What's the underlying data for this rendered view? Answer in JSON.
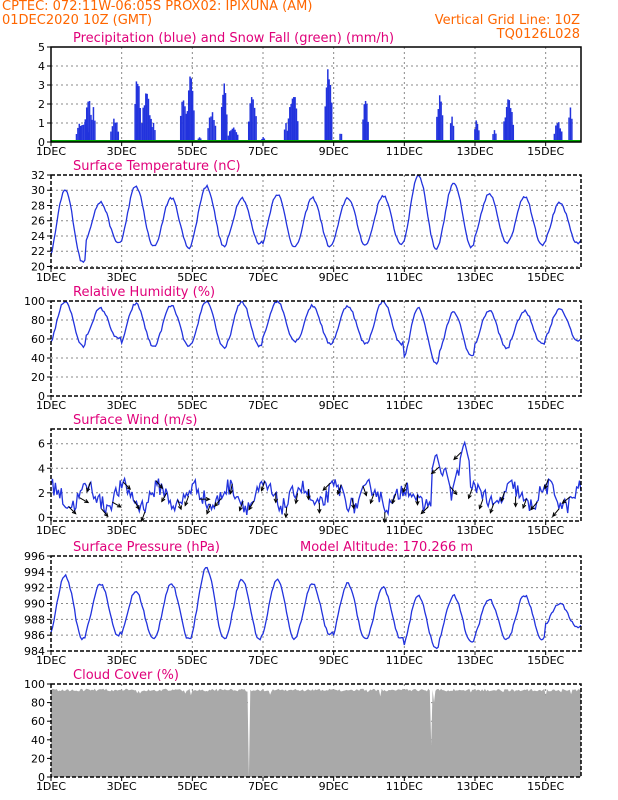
{
  "header": {
    "line1_left": "CPTEC:   072:11W-06:05S   PROX02: IPIXUNA (AM)",
    "line2_left": "01DEC2020 10Z (GMT)",
    "line2_right": "Vertical Grid Line: 10Z",
    "line3_right": "TQ0126L028",
    "color": "#ff6600"
  },
  "colors": {
    "series": "#2233dd",
    "snow": "#00aa00",
    "cloud": "#a9a9a9",
    "title": "#e0007a",
    "grid": "#888888"
  },
  "chart_data": [
    {
      "type": "bar",
      "title": "Precipitation (blue) and Snow Fall (green) (mm/h)",
      "xlabels": [
        "1DEC",
        "3DEC",
        "5DEC",
        "7DEC",
        "9DEC",
        "11DEC",
        "13DEC",
        "15DEC"
      ],
      "xticks": [
        1,
        3,
        5,
        7,
        9,
        11,
        13,
        15
      ],
      "xrange": [
        1,
        16
      ],
      "ylim": [
        0,
        5
      ],
      "yticks": [
        0,
        1,
        2,
        3,
        4,
        5
      ],
      "snow_value": 0,
      "events": [
        [
          1.9,
          0.4,
          1.2
        ],
        [
          2.05,
          0.2,
          2.6
        ],
        [
          2.2,
          0.12,
          2.2
        ],
        [
          2.8,
          0.25,
          1.3
        ],
        [
          3.45,
          0.18,
          3.7
        ],
        [
          3.7,
          0.3,
          2.6
        ],
        [
          3.9,
          0.12,
          1.2
        ],
        [
          4.75,
          0.2,
          2.7
        ],
        [
          4.95,
          0.22,
          3.8
        ],
        [
          5.2,
          0.1,
          0.3
        ],
        [
          5.55,
          0.25,
          1.8
        ],
        [
          5.9,
          0.18,
          3.4
        ],
        [
          6.15,
          0.3,
          0.9
        ],
        [
          6.7,
          0.25,
          2.7
        ],
        [
          7.0,
          0.1,
          0.3
        ],
        [
          7.65,
          0.12,
          1.0
        ],
        [
          7.85,
          0.3,
          2.8
        ],
        [
          8.85,
          0.22,
          4.3
        ],
        [
          9.2,
          0.08,
          0.7
        ],
        [
          9.9,
          0.18,
          2.5
        ],
        [
          12.0,
          0.2,
          2.6
        ],
        [
          12.35,
          0.12,
          1.6
        ],
        [
          13.05,
          0.15,
          1.2
        ],
        [
          13.55,
          0.12,
          0.8
        ],
        [
          13.95,
          0.3,
          2.4
        ],
        [
          15.35,
          0.25,
          1.1
        ],
        [
          15.7,
          0.12,
          2.2
        ]
      ]
    },
    {
      "type": "line",
      "title": "Surface Temperature (nC)",
      "xlabels": [
        "1DEC",
        "3DEC",
        "5DEC",
        "7DEC",
        "9DEC",
        "11DEC",
        "13DEC",
        "15DEC"
      ],
      "xticks": [
        1,
        3,
        5,
        7,
        9,
        11,
        13,
        15
      ],
      "xrange": [
        1,
        16
      ],
      "ylim": [
        19.8,
        32
      ],
      "yticks": [
        20,
        22,
        24,
        26,
        28,
        30,
        32
      ],
      "daily_min": [
        20.5,
        23.1,
        22.6,
        22.5,
        22.6,
        23.0,
        22.5,
        22.6,
        22.8,
        23.0,
        22.3,
        22.5,
        23.2,
        22.9,
        23.0
      ],
      "daily_max": [
        30.0,
        28.4,
        30.5,
        29.0,
        30.5,
        29.0,
        29.5,
        29.0,
        29.0,
        29.3,
        32.0,
        31.0,
        29.5,
        29.2,
        28.3
      ]
    },
    {
      "type": "line",
      "title": "Relative Humidity (%)",
      "xlabels": [
        "1DEC",
        "3DEC",
        "5DEC",
        "7DEC",
        "9DEC",
        "11DEC",
        "13DEC",
        "15DEC"
      ],
      "xticks": [
        1,
        3,
        5,
        7,
        9,
        11,
        13,
        15
      ],
      "xrange": [
        1,
        16
      ],
      "ylim": [
        0,
        100
      ],
      "yticks": [
        0,
        20,
        40,
        60,
        80,
        100
      ],
      "daily_max": [
        100,
        92,
        97,
        95,
        100,
        99,
        100,
        95,
        95,
        100,
        92,
        88,
        90,
        89,
        92
      ],
      "daily_min": [
        52,
        60,
        52,
        52,
        50,
        52,
        58,
        55,
        55,
        55,
        35,
        42,
        50,
        55,
        58
      ]
    },
    {
      "type": "line",
      "title": "Surface Wind (m/s)",
      "xlabels": [
        "1DEC",
        "3DEC",
        "5DEC",
        "7DEC",
        "9DEC",
        "11DEC",
        "13DEC",
        "15DEC"
      ],
      "xticks": [
        1,
        3,
        5,
        7,
        9,
        11,
        13,
        15
      ],
      "xrange": [
        1,
        16
      ],
      "ylim": [
        -0.3,
        7.2
      ],
      "yticks": [
        0,
        2,
        4,
        6
      ],
      "arrow_angles_deg": [
        135,
        120,
        200,
        140,
        120,
        135,
        150,
        200,
        140,
        210,
        160,
        200,
        90,
        200,
        220,
        190,
        200,
        210,
        200,
        180,
        185,
        190,
        180,
        180,
        225,
        200,
        170,
        160,
        200,
        180,
        200,
        200,
        180,
        225,
        230,
        140,
        225,
        200,
        200,
        200,
        200,
        180,
        200,
        220,
        200,
        220,
        230
      ],
      "spikes": [
        [
          11.9,
          5.3
        ],
        [
          12.15,
          4.2
        ],
        [
          12.5,
          3.9
        ],
        [
          12.7,
          6.2
        ]
      ]
    },
    {
      "type": "line",
      "title": "Surface Pressure (hPa)",
      "annotation": "Model Altitude: 170.266 m",
      "xlabels": [
        "1DEC",
        "3DEC",
        "5DEC",
        "7DEC",
        "9DEC",
        "11DEC",
        "13DEC",
        "15DEC"
      ],
      "xticks": [
        1,
        3,
        5,
        7,
        9,
        11,
        13,
        15
      ],
      "xrange": [
        1,
        16
      ],
      "ylim": [
        984,
        996
      ],
      "yticks": [
        984,
        986,
        988,
        990,
        992,
        994,
        996
      ],
      "daily_max": [
        993.5,
        992.5,
        991.5,
        992.5,
        994.5,
        993.0,
        993.0,
        992.5,
        992.5,
        992.0,
        991.0,
        991.0,
        990.5,
        991.0,
        990.0
      ],
      "daily_min": [
        985.5,
        986.0,
        985.5,
        985.5,
        985.5,
        985.5,
        985.5,
        986.0,
        985.5,
        985.5,
        984.3,
        985.0,
        985.5,
        985.5,
        987.0
      ]
    },
    {
      "type": "area",
      "title": "Cloud Cover (%)",
      "xlabels": [
        "1DEC",
        "3DEC",
        "5DEC",
        "7DEC",
        "9DEC",
        "11DEC",
        "13DEC",
        "15DEC"
      ],
      "xticks": [
        1,
        3,
        5,
        7,
        9,
        11,
        13,
        15
      ],
      "xrange": [
        1,
        16
      ],
      "ylim": [
        0,
        100
      ],
      "yticks": [
        0,
        20,
        40,
        60,
        80,
        100
      ],
      "base_value": 95,
      "dips": [
        [
          4.95,
          88
        ],
        [
          6.6,
          0
        ],
        [
          11.75,
          35
        ],
        [
          11.85,
          80
        ]
      ]
    }
  ]
}
